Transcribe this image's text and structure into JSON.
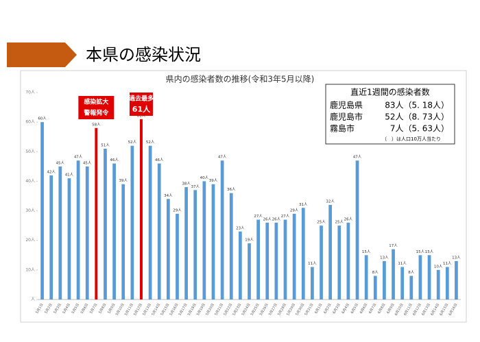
{
  "header": {
    "title": "本県の感染状況"
  },
  "chart_data": {
    "type": "bar",
    "title": "県内の感染者数の推移(令和3年5月以降)",
    "categories": [
      "5月1日",
      "5月2日",
      "5月3日",
      "5月4日",
      "5月5日",
      "5月6日",
      "5月7日",
      "5月8日",
      "5月9日",
      "5月10日",
      "5月11日",
      "5月12日",
      "5月13日",
      "5月14日",
      "5月15日",
      "5月16日",
      "5月17日",
      "5月18日",
      "5月19日",
      "5月20日",
      "5月21日",
      "5月22日",
      "5月23日",
      "5月24日",
      "5月25日",
      "5月26日",
      "5月27日",
      "5月28日",
      "5月29日",
      "5月30日",
      "5月31日",
      "6月1日",
      "6月2日",
      "6月3日",
      "6月4日",
      "6月5日",
      "6月6日",
      "6月7日",
      "6月8日",
      "6月9日",
      "6月10日",
      "6月11日",
      "6月12日",
      "6月13日",
      "6月14日",
      "6月15日",
      "6月16日"
    ],
    "values": [
      60,
      42,
      45,
      41,
      47,
      45,
      58,
      51,
      46,
      39,
      52,
      61,
      52,
      46,
      34,
      29,
      38,
      37,
      40,
      39,
      47,
      36,
      23,
      19,
      27,
      26,
      26,
      27,
      29,
      31,
      11,
      25,
      32,
      25,
      26,
      47,
      15,
      8,
      13,
      17,
      11,
      8,
      15,
      15,
      10,
      11,
      13
    ],
    "value_labels": [
      "60人",
      "42人",
      "45人",
      "41人",
      "47人",
      "45人",
      "58人",
      "51人",
      "46人",
      "39人",
      "52人",
      "61人",
      "52人",
      "46人",
      "34人",
      "29人",
      "38人",
      "37人",
      "40人",
      "39人",
      "47人",
      "36人",
      "23人",
      "19人",
      "27人",
      "26人",
      "26人",
      "27人",
      "29人",
      "31人",
      "11人",
      "25人",
      "32人",
      "25人",
      "26人",
      "47人",
      "15人",
      "8人",
      "13人",
      "17人",
      "11人",
      "8人",
      "15人",
      "15人",
      "10人",
      "11人",
      "13人"
    ],
    "color": "#5b9bd5",
    "bar_colors": [
      "#5b9bd5",
      "#5b9bd5",
      "#5b9bd5",
      "#5b9bd5",
      "#5b9bd5",
      "#5b9bd5",
      "#e00000",
      "#5b9bd5",
      "#5b9bd5",
      "#5b9bd5",
      "#5b9bd5",
      "#e00000",
      "#5b9bd5",
      "#5b9bd5",
      "#5b9bd5",
      "#5b9bd5",
      "#5b9bd5",
      "#5b9bd5",
      "#5b9bd5",
      "#5b9bd5",
      "#5b9bd5",
      "#5b9bd5",
      "#5b9bd5",
      "#5b9bd5",
      "#5b9bd5",
      "#5b9bd5",
      "#5b9bd5",
      "#5b9bd5",
      "#5b9bd5",
      "#5b9bd5",
      "#5b9bd5",
      "#5b9bd5",
      "#5b9bd5",
      "#5b9bd5",
      "#5b9bd5",
      "#5b9bd5",
      "#5b9bd5",
      "#5b9bd5",
      "#5b9bd5",
      "#5b9bd5",
      "#5b9bd5",
      "#5b9bd5",
      "#5b9bd5",
      "#5b9bd5",
      "#5b9bd5",
      "#5b9bd5",
      "#5b9bd5"
    ],
    "ylim": [
      0,
      70
    ],
    "yticks": [
      {
        "value": 0,
        "label": "人"
      },
      {
        "value": 10,
        "label": "10人"
      },
      {
        "value": 20,
        "label": "20人"
      },
      {
        "value": 30,
        "label": "30人"
      },
      {
        "value": 40,
        "label": "40人"
      },
      {
        "value": 50,
        "label": "50人"
      },
      {
        "value": 60,
        "label": "60人"
      },
      {
        "value": 70,
        "label": "70人"
      }
    ],
    "grid": false,
    "annotations": [
      {
        "at": "5月7日",
        "lines": [
          "感染拡大",
          "警報発令"
        ]
      },
      {
        "at": "5月12日",
        "lines": [
          "過去最多",
          "61人"
        ]
      }
    ],
    "info_box": {
      "title": "直近1週間の感染者数",
      "rows": [
        [
          "鹿児島県",
          "83人（5. 18人）"
        ],
        [
          "鹿児島市",
          "52人（8. 73人）"
        ],
        [
          "霧島市",
          "7人（5. 63人）"
        ]
      ],
      "note": "（　）は人口10万人当たり"
    }
  }
}
